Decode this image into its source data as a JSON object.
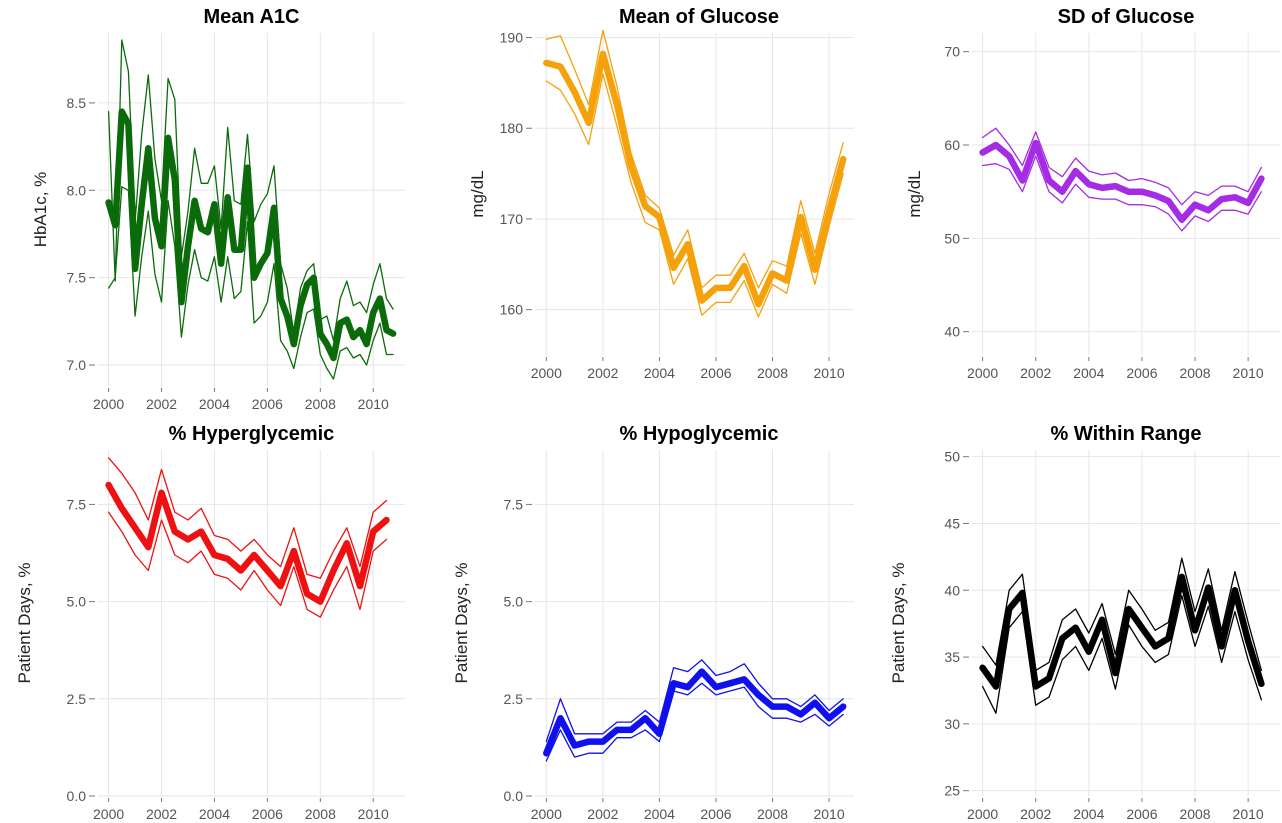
{
  "chart_data": [
    {
      "type": "line",
      "title": "Mean A1C",
      "xlabel": "",
      "ylabel": "HbA1c, %",
      "xlim": [
        1999.6,
        2011.2
      ],
      "ylim": [
        6.88,
        8.9
      ],
      "xticks": [
        2000,
        2002,
        2004,
        2006,
        2008,
        2010
      ],
      "yticks": [
        7.0,
        7.5,
        8.0,
        8.5
      ],
      "ytick_labels": [
        "7.0",
        "7.5",
        "8.0",
        "8.5"
      ],
      "color": "#0b6b0b",
      "grid": true,
      "x": [
        2000,
        2000.25,
        2000.5,
        2000.75,
        2001,
        2001.25,
        2001.5,
        2001.75,
        2002,
        2002.25,
        2002.5,
        2002.75,
        2003,
        2003.25,
        2003.5,
        2003.75,
        2004,
        2004.25,
        2004.5,
        2004.75,
        2005,
        2005.25,
        2005.5,
        2005.75,
        2006,
        2006.25,
        2006.5,
        2006.75,
        2007,
        2007.25,
        2007.5,
        2007.75,
        2008,
        2008.25,
        2008.5,
        2008.75,
        2009,
        2009.25,
        2009.5,
        2009.75,
        2010,
        2010.25,
        2010.5,
        2010.75
      ],
      "series": [
        {
          "role": "upper",
          "values": [
            8.45,
            7.48,
            8.86,
            8.68,
            7.82,
            8.32,
            8.66,
            8.18,
            7.94,
            8.64,
            8.52,
            7.62,
            7.88,
            8.24,
            8.04,
            8.04,
            8.14,
            7.78,
            8.36,
            7.94,
            7.92,
            8.32,
            7.82,
            7.92,
            7.98,
            8.14,
            7.58,
            7.44,
            7.18,
            7.44,
            7.54,
            7.58,
            7.26,
            7.28,
            7.14,
            7.38,
            7.48,
            7.34,
            7.36,
            7.3,
            7.46,
            7.58,
            7.38,
            7.32
          ]
        },
        {
          "role": "mean",
          "values": [
            7.93,
            7.8,
            8.45,
            8.38,
            7.55,
            7.92,
            8.24,
            7.84,
            7.68,
            8.3,
            8.06,
            7.36,
            7.68,
            7.94,
            7.78,
            7.76,
            7.92,
            7.58,
            7.96,
            7.66,
            7.66,
            8.13,
            7.5,
            7.58,
            7.64,
            7.9,
            7.38,
            7.28,
            7.12,
            7.34,
            7.46,
            7.5,
            7.18,
            7.12,
            7.04,
            7.24,
            7.26,
            7.16,
            7.2,
            7.12,
            7.3,
            7.38,
            7.2,
            7.18
          ]
        },
        {
          "role": "lower",
          "values": [
            7.44,
            7.5,
            8.02,
            8.0,
            7.28,
            7.62,
            7.88,
            7.52,
            7.36,
            7.94,
            7.68,
            7.16,
            7.46,
            7.66,
            7.5,
            7.48,
            7.62,
            7.36,
            7.62,
            7.38,
            7.42,
            7.82,
            7.24,
            7.28,
            7.36,
            7.58,
            7.14,
            7.08,
            6.98,
            7.16,
            7.3,
            7.32,
            7.06,
            6.98,
            6.92,
            7.08,
            7.1,
            7.04,
            7.06,
            7.0,
            7.14,
            7.24,
            7.06,
            7.06
          ]
        }
      ]
    },
    {
      "type": "line",
      "title": "Mean of Glucose",
      "xlabel": "",
      "ylabel": "mg/dL",
      "xlim": [
        1999.6,
        2011.2
      ],
      "ylim": [
        155,
        190.5
      ],
      "xticks": [
        2000,
        2002,
        2004,
        2006,
        2008,
        2010
      ],
      "yticks": [
        160,
        170,
        180,
        190
      ],
      "ytick_labels": [
        "160",
        "170",
        "180",
        "190"
      ],
      "color": "#f5a10b",
      "grid": true,
      "x": [
        2000,
        2000.5,
        2001,
        2001.5,
        2002,
        2002.5,
        2003,
        2003.5,
        2004,
        2004.5,
        2005,
        2005.5,
        2006,
        2006.5,
        2007,
        2007.5,
        2008,
        2008.5,
        2009,
        2009.5,
        2010,
        2010.5
      ],
      "series": [
        {
          "role": "upper",
          "values": [
            189.8,
            190.2,
            186.5,
            182.6,
            190.8,
            184.6,
            177.2,
            172.6,
            171.2,
            166.0,
            168.8,
            162.4,
            163.8,
            163.8,
            166.2,
            162.4,
            165.4,
            164.8,
            172.0,
            166.2,
            172.8,
            178.4
          ]
        },
        {
          "role": "mean",
          "values": [
            187.2,
            186.8,
            184.0,
            180.6,
            188.2,
            182.6,
            175.8,
            171.4,
            170.2,
            164.6,
            167.2,
            161.0,
            162.4,
            162.4,
            164.8,
            160.6,
            164.0,
            163.2,
            170.2,
            164.4,
            170.8,
            176.6
          ]
        },
        {
          "role": "lower",
          "values": [
            185.2,
            184.2,
            181.6,
            178.2,
            186.0,
            180.2,
            174.0,
            169.6,
            168.8,
            162.8,
            165.6,
            159.4,
            160.8,
            160.8,
            163.2,
            159.2,
            162.8,
            161.8,
            168.4,
            162.8,
            169.2,
            175.0
          ]
        }
      ]
    },
    {
      "type": "line",
      "title": "SD of Glucose",
      "xlabel": "",
      "ylabel": "mg/dL",
      "xlim": [
        1999.6,
        2011.2
      ],
      "ylim": [
        37.5,
        72
      ],
      "xticks": [
        2000,
        2002,
        2004,
        2006,
        2008,
        2010
      ],
      "yticks": [
        40,
        50,
        60,
        70
      ],
      "ytick_labels": [
        "40",
        "50",
        "60",
        "70"
      ],
      "color": "#a52be5",
      "grid": true,
      "x": [
        2000,
        2000.5,
        2001,
        2001.5,
        2002,
        2002.5,
        2003,
        2003.5,
        2004,
        2004.5,
        2005,
        2005.5,
        2006,
        2006.5,
        2007,
        2007.5,
        2008,
        2008.5,
        2009,
        2009.5,
        2010,
        2010.5
      ],
      "series": [
        {
          "role": "upper",
          "values": [
            60.8,
            61.8,
            60.0,
            57.8,
            61.4,
            57.6,
            56.6,
            58.6,
            57.2,
            56.8,
            57.0,
            56.2,
            56.4,
            56.0,
            55.4,
            53.6,
            55.0,
            54.6,
            55.6,
            55.6,
            55.0,
            57.6
          ]
        },
        {
          "role": "mean",
          "values": [
            59.2,
            60.0,
            58.8,
            56.2,
            60.2,
            56.2,
            55.0,
            57.2,
            55.8,
            55.4,
            55.6,
            55.0,
            55.0,
            54.6,
            54.0,
            52.0,
            53.6,
            53.0,
            54.2,
            54.4,
            53.8,
            56.4
          ]
        },
        {
          "role": "lower",
          "values": [
            57.8,
            58.0,
            57.4,
            55.0,
            58.8,
            55.0,
            53.8,
            55.8,
            54.4,
            54.2,
            54.2,
            53.6,
            53.6,
            53.4,
            52.6,
            50.8,
            52.4,
            51.8,
            53.0,
            53.0,
            52.6,
            55.0
          ]
        }
      ]
    },
    {
      "type": "line",
      "title": "% Hyperglycemic",
      "xlabel": "",
      "ylabel": "Patient Days, %",
      "xlim": [
        1999.6,
        2011.2
      ],
      "ylim": [
        0,
        8.9
      ],
      "xticks": [
        2000,
        2002,
        2004,
        2006,
        2008,
        2010
      ],
      "yticks": [
        0.0,
        2.5,
        5.0,
        7.5
      ],
      "ytick_labels": [
        "0.0",
        "2.5",
        "5.0",
        "7.5"
      ],
      "color": "#ef1111",
      "grid": true,
      "x": [
        2000,
        2000.5,
        2001,
        2001.5,
        2002,
        2002.5,
        2003,
        2003.5,
        2004,
        2004.5,
        2005,
        2005.5,
        2006,
        2006.5,
        2007,
        2007.5,
        2008,
        2008.5,
        2009,
        2009.5,
        2010,
        2010.5
      ],
      "series": [
        {
          "role": "upper",
          "values": [
            8.7,
            8.3,
            7.8,
            7.1,
            8.4,
            7.3,
            7.1,
            7.4,
            6.7,
            6.6,
            6.3,
            6.6,
            6.2,
            5.9,
            6.9,
            5.7,
            5.6,
            6.3,
            6.9,
            5.9,
            7.3,
            7.6
          ]
        },
        {
          "role": "mean",
          "values": [
            8.0,
            7.4,
            6.9,
            6.4,
            7.8,
            6.8,
            6.6,
            6.8,
            6.2,
            6.1,
            5.8,
            6.2,
            5.8,
            5.4,
            6.3,
            5.2,
            5.0,
            5.8,
            6.5,
            5.4,
            6.8,
            7.1
          ]
        },
        {
          "role": "lower",
          "values": [
            7.3,
            6.8,
            6.2,
            5.8,
            7.1,
            6.2,
            6.0,
            6.3,
            5.7,
            5.6,
            5.3,
            5.8,
            5.3,
            4.9,
            5.9,
            4.8,
            4.6,
            5.3,
            5.9,
            4.8,
            6.3,
            6.6
          ]
        }
      ]
    },
    {
      "type": "line",
      "title": "% Hypoglycemic",
      "xlabel": "",
      "ylabel": "Patient Days, %",
      "xlim": [
        1999.6,
        2011.2
      ],
      "ylim": [
        0,
        8.9
      ],
      "xticks": [
        2000,
        2002,
        2004,
        2006,
        2008,
        2010
      ],
      "yticks": [
        0.0,
        2.5,
        5.0,
        7.5
      ],
      "ytick_labels": [
        "0.0",
        "2.5",
        "5.0",
        "7.5"
      ],
      "color": "#1010ee",
      "grid": true,
      "x": [
        2000,
        2000.5,
        2001,
        2001.5,
        2002,
        2002.5,
        2003,
        2003.5,
        2004,
        2004.5,
        2005,
        2005.5,
        2006,
        2006.5,
        2007,
        2007.5,
        2008,
        2008.5,
        2009,
        2009.5,
        2010,
        2010.5
      ],
      "series": [
        {
          "role": "upper",
          "values": [
            1.4,
            2.5,
            1.6,
            1.6,
            1.6,
            1.9,
            1.9,
            2.2,
            1.9,
            3.3,
            3.2,
            3.5,
            3.1,
            3.2,
            3.4,
            2.9,
            2.5,
            2.5,
            2.3,
            2.6,
            2.2,
            2.5
          ]
        },
        {
          "role": "mean",
          "values": [
            1.1,
            2.0,
            1.3,
            1.4,
            1.4,
            1.7,
            1.7,
            2.0,
            1.6,
            2.9,
            2.8,
            3.2,
            2.8,
            2.9,
            3.0,
            2.6,
            2.3,
            2.3,
            2.1,
            2.4,
            2.0,
            2.3
          ]
        },
        {
          "role": "lower",
          "values": [
            0.9,
            1.7,
            1.0,
            1.1,
            1.1,
            1.5,
            1.5,
            1.7,
            1.4,
            2.7,
            2.6,
            2.9,
            2.6,
            2.7,
            2.8,
            2.3,
            2.0,
            2.0,
            1.9,
            2.1,
            1.8,
            2.1
          ]
        }
      ]
    },
    {
      "type": "line",
      "title": "% Within Range",
      "xlabel": "",
      "ylabel": "Patient Days, %",
      "xlim": [
        1999.6,
        2011.2
      ],
      "ylim": [
        24.6,
        50.5
      ],
      "xticks": [
        2000,
        2002,
        2004,
        2006,
        2008,
        2010
      ],
      "yticks": [
        25,
        30,
        35,
        40,
        45,
        50
      ],
      "ytick_labels": [
        "25",
        "30",
        "35",
        "40",
        "45",
        "50"
      ],
      "color": "#000000",
      "grid": true,
      "x": [
        2000,
        2000.5,
        2001,
        2001.5,
        2002,
        2002.5,
        2003,
        2003.5,
        2004,
        2004.5,
        2005,
        2005.5,
        2006,
        2006.5,
        2007,
        2007.5,
        2008,
        2008.5,
        2009,
        2009.5,
        2010,
        2010.5
      ],
      "series": [
        {
          "role": "upper",
          "values": [
            35.8,
            34.4,
            40.0,
            41.2,
            34.0,
            34.6,
            37.8,
            38.6,
            36.8,
            39.0,
            35.2,
            40.0,
            38.6,
            37.0,
            37.6,
            42.4,
            38.4,
            41.6,
            37.0,
            41.4,
            37.6,
            34.0
          ]
        },
        {
          "role": "mean",
          "values": [
            34.2,
            32.8,
            38.6,
            39.8,
            32.8,
            33.4,
            36.4,
            37.2,
            35.4,
            37.8,
            33.8,
            38.6,
            37.2,
            35.8,
            36.4,
            41.0,
            37.0,
            40.2,
            35.8,
            40.0,
            36.2,
            33.0
          ]
        },
        {
          "role": "lower",
          "values": [
            32.8,
            30.8,
            37.2,
            38.4,
            31.4,
            32.0,
            34.8,
            35.8,
            34.0,
            36.4,
            32.6,
            37.4,
            35.8,
            34.6,
            35.2,
            39.6,
            35.8,
            38.8,
            34.6,
            38.4,
            34.8,
            31.8
          ]
        }
      ]
    }
  ]
}
